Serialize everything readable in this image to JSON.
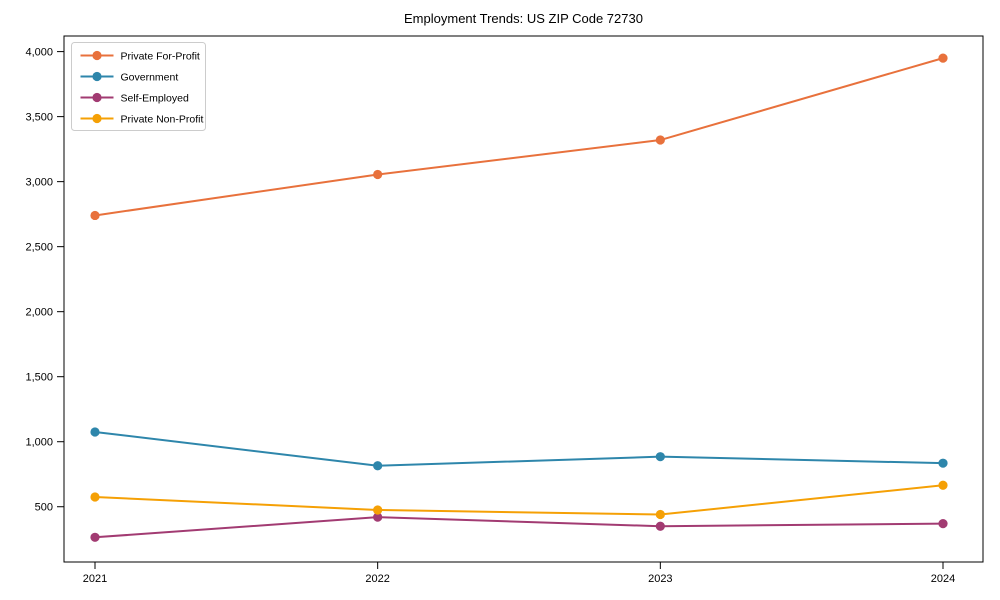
{
  "window": {
    "kind": "matplotlib-style line chart figure",
    "background": "#ffffff"
  },
  "chart_data": {
    "type": "line",
    "title": "Employment Trends: US ZIP Code 72730",
    "xlabel": "",
    "ylabel": "",
    "x": [
      2021,
      2022,
      2023,
      2024
    ],
    "x_tick_labels": [
      "2021",
      "2022",
      "2023",
      "2024"
    ],
    "series": [
      {
        "name": "Private For-Profit",
        "color": "#E8713C",
        "values": [
          2740,
          3055,
          3320,
          3950
        ]
      },
      {
        "name": "Government",
        "color": "#2E86AB",
        "values": [
          1075,
          815,
          885,
          835
        ]
      },
      {
        "name": "Self-Employed",
        "color": "#A23B72",
        "values": [
          265,
          420,
          350,
          370
        ]
      },
      {
        "name": "Private Non-Profit",
        "color": "#F5A005",
        "values": [
          575,
          475,
          440,
          665
        ]
      }
    ],
    "ylim": [
      75,
      4120
    ],
    "yticks": [
      500,
      1000,
      1500,
      2000,
      2500,
      3000,
      3500,
      4000
    ],
    "ytick_labels": [
      "500",
      "1,000",
      "1,500",
      "2,000",
      "2,500",
      "3,000",
      "3,500",
      "4,000"
    ],
    "legend_position": "upper-left",
    "legend_border_color": "#cccccc",
    "grid": false,
    "marker": "circle",
    "axis_color": "#000000"
  }
}
